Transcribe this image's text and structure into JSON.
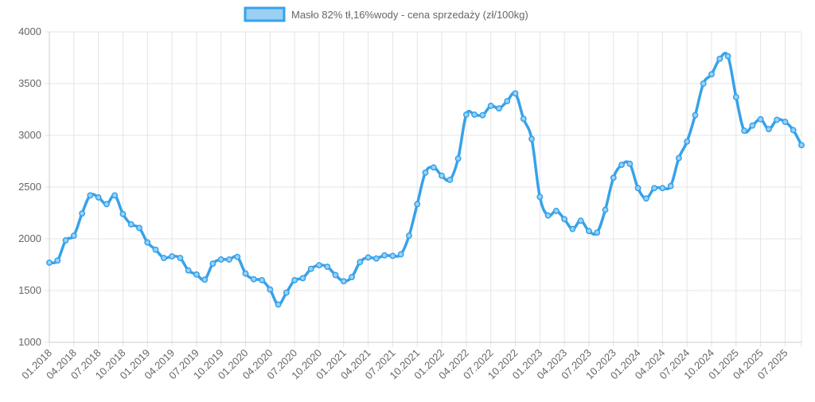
{
  "chart_data": {
    "type": "line",
    "title": "",
    "xlabel": "",
    "ylabel": "",
    "ylim": [
      1000,
      4000
    ],
    "y_ticks": [
      "1000",
      "1500",
      "2000",
      "2500",
      "3000",
      "3500",
      "4000"
    ],
    "x_tick_labels": [
      "01.2018",
      "04.2018",
      "07.2018",
      "10.2018",
      "01.2019",
      "04.2019",
      "07.2019",
      "10.2019",
      "01.2020",
      "04.2020",
      "07.2020",
      "10.2020",
      "01.2021",
      "04.2021",
      "07.2021",
      "10.2021",
      "01.2022",
      "04.2022",
      "07.2022",
      "10.2022",
      "01.2023",
      "04.2023",
      "07.2023",
      "10.2023",
      "01.2024",
      "04.2024",
      "07.2024",
      "10.2024",
      "01.2025",
      "04.2025",
      "07.2025"
    ],
    "grid": true,
    "legend_position": "top-center",
    "series": [
      {
        "name": "Masło 82% tł,16%wody - cena sprzedaży (zł/100kg)",
        "color": "#36a2eb",
        "fill_color": "#9ad0f5",
        "values": [
          1770,
          1790,
          1985,
          2030,
          2245,
          2420,
          2400,
          2335,
          2420,
          2240,
          2140,
          2105,
          1965,
          1895,
          1815,
          1830,
          1815,
          1695,
          1655,
          1605,
          1760,
          1800,
          1800,
          1825,
          1665,
          1610,
          1600,
          1510,
          1365,
          1480,
          1600,
          1620,
          1710,
          1745,
          1730,
          1650,
          1590,
          1630,
          1775,
          1820,
          1810,
          1840,
          1835,
          1850,
          2030,
          2335,
          2640,
          2690,
          2610,
          2570,
          2775,
          3200,
          3200,
          3195,
          3285,
          3260,
          3330,
          3405,
          3160,
          2965,
          2405,
          2225,
          2270,
          2190,
          2095,
          2175,
          2075,
          2060,
          2280,
          2590,
          2715,
          2725,
          2490,
          2390,
          2490,
          2490,
          2510,
          2780,
          2940,
          3195,
          3500,
          3590,
          3740,
          3765,
          3370,
          3045,
          3095,
          3155,
          3060,
          3150,
          3130,
          3050,
          2905
        ]
      }
    ]
  }
}
